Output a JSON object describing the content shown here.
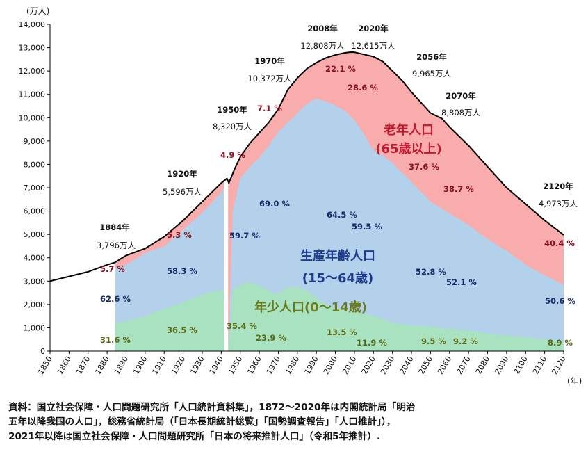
{
  "chart_data": {
    "type": "area",
    "y_unit": "(万人)",
    "x_unit": "(年)",
    "ylim": [
      0,
      14000
    ],
    "xlim": [
      1850,
      2120
    ],
    "y_ticks": [
      "0",
      "1,000",
      "2,000",
      "3,000",
      "4,000",
      "5,000",
      "6,000",
      "7,000",
      "8,000",
      "9,000",
      "10,000",
      "11,000",
      "12,000",
      "13,000",
      "14,000"
    ],
    "x_ticks": [
      "1850",
      "1860",
      "1870",
      "1880",
      "1890",
      "1900",
      "1910",
      "1920",
      "1930",
      "1940",
      "1950",
      "1960",
      "1970",
      "1980",
      "1990",
      "2000",
      "2010",
      "2020",
      "2030",
      "2040",
      "2050",
      "2060",
      "2070",
      "2080",
      "2090",
      "2100",
      "2110",
      "2120"
    ],
    "grid": false,
    "total_population": {
      "x": [
        1850,
        1860,
        1870,
        1880,
        1884,
        1890,
        1900,
        1910,
        1920,
        1930,
        1940,
        1943,
        1944,
        1947,
        1950,
        1955,
        1960,
        1965,
        1970,
        1975,
        1980,
        1985,
        1990,
        1995,
        2000,
        2005,
        2008,
        2010,
        2015,
        2020,
        2025,
        2030,
        2035,
        2040,
        2045,
        2050,
        2056,
        2060,
        2065,
        2070,
        2080,
        2090,
        2100,
        2110,
        2120
      ],
      "y": [
        3000,
        3200,
        3400,
        3700,
        3796,
        4100,
        4400,
        4900,
        5596,
        6400,
        7200,
        7400,
        7200,
        7800,
        8320,
        8900,
        9350,
        9800,
        10372,
        11200,
        11700,
        12100,
        12360,
        12560,
        12690,
        12780,
        12808,
        12806,
        12710,
        12615,
        12400,
        12000,
        11600,
        11100,
        10650,
        10200,
        9965,
        9600,
        9200,
        8808,
        7900,
        7000,
        6300,
        5600,
        4973
      ]
    },
    "working_age": {
      "x": [
        1884,
        1890,
        1900,
        1910,
        1920,
        1930,
        1940,
        1941.5,
        1943,
        1943.6,
        1946,
        1950,
        1955,
        1960,
        1965,
        1970,
        1975,
        1980,
        1985,
        1990,
        1995,
        2000,
        2005,
        2010,
        2015,
        2020,
        2025,
        2030,
        2040,
        2050,
        2060,
        2070,
        2080,
        2090,
        2100,
        2110,
        2120
      ],
      "y": [
        3570,
        3700,
        4200,
        4500,
        5200,
        5930,
        6800,
        7000,
        6800,
        0,
        6000,
        7400,
        7900,
        8300,
        8800,
        9400,
        9800,
        10200,
        10600,
        10820,
        10700,
        10520,
        10300,
        9900,
        9300,
        8600,
        8400,
        8050,
        7250,
        6400,
        5900,
        5400,
        4800,
        4300,
        3700,
        3250,
        2840
      ]
    },
    "young": {
      "x": [
        1884,
        1890,
        1900,
        1910,
        1920,
        1930,
        1935,
        1940,
        1941.5,
        1943,
        1943.6,
        1946,
        1950,
        1953,
        1957,
        1960,
        1965,
        1968,
        1972,
        1975,
        1980,
        1985,
        1990,
        1995,
        2000,
        2005,
        2010,
        2015,
        2020,
        2025,
        2030,
        2040,
        2050,
        2060,
        2070,
        2080,
        2090,
        2100,
        2110,
        2120
      ],
      "y": [
        1200,
        1280,
        1500,
        1800,
        2100,
        2420,
        2560,
        2600,
        2630,
        2600,
        0,
        2620,
        2800,
        2980,
        2900,
        2800,
        2600,
        2420,
        2600,
        2720,
        2750,
        2600,
        2280,
        2000,
        1850,
        1780,
        1700,
        1600,
        1500,
        1370,
        1230,
        1100,
        1050,
        950,
        880,
        760,
        680,
        600,
        520,
        440
      ]
    },
    "shares": {
      "young": [
        {
          "label": "31.6 %",
          "year": 1884
        },
        {
          "label": "36.5 %",
          "year": 1920
        },
        {
          "label": "35.4 %",
          "year": 1950
        },
        {
          "label": "23.9 %",
          "year": 1970
        },
        {
          "label": "13.5 %",
          "year": 2008
        },
        {
          "label": "11.9 %",
          "year": 2020
        },
        {
          "label": "9.5 %",
          "year": 2056
        },
        {
          "label": "9.2 %",
          "year": 2070
        },
        {
          "label": "8.9 %",
          "year": 2120
        }
      ],
      "working": [
        {
          "label": "62.6 %",
          "year": 1884
        },
        {
          "label": "58.3 %",
          "year": 1920
        },
        {
          "label": "59.7 %",
          "year": 1950
        },
        {
          "label": "69.0 %",
          "year": 1970
        },
        {
          "label": "64.5 %",
          "year": 2008
        },
        {
          "label": "59.5 %",
          "year": 2020
        },
        {
          "label": "52.8 %",
          "year": 2056
        },
        {
          "label": "52.1 %",
          "year": 2070
        },
        {
          "label": "50.6 %",
          "year": 2120
        }
      ],
      "elderly": [
        {
          "label": "5.7 %",
          "year": 1884
        },
        {
          "label": "5.3 %",
          "year": 1920
        },
        {
          "label": "4.9 %",
          "year": 1950
        },
        {
          "label": "7.1 %",
          "year": 1970
        },
        {
          "label": "22.1 %",
          "year": 2008
        },
        {
          "label": "28.6 %",
          "year": 2020
        },
        {
          "label": "37.6 %",
          "year": 2056
        },
        {
          "label": "38.7 %",
          "year": 2070
        },
        {
          "label": "40.4 %",
          "year": 2120
        }
      ]
    },
    "annotations": [
      {
        "year": "1884年",
        "value": "3,796万人"
      },
      {
        "year": "1920年",
        "value": "5,596万人"
      },
      {
        "year": "1950年",
        "value": "8,320万人"
      },
      {
        "year": "1970年",
        "value": "10,372万人"
      },
      {
        "year": "2008年",
        "value": "12,808万人"
      },
      {
        "year": "2020年",
        "value": "12,615万人"
      },
      {
        "year": "2056年",
        "value": "9,965万人"
      },
      {
        "year": "2070年",
        "value": "8,808万人"
      },
      {
        "year": "2120年",
        "value": "4,973万人"
      }
    ],
    "series_labels": {
      "elderly_line1": "老年人口",
      "elderly_line2": "(65歳以上)",
      "working_line1": "生産年齢人口",
      "working_line2": "(15～64歳)",
      "young": "年少人口(0～14歳)"
    },
    "colors": {
      "elderly": "#f8acac",
      "working": "#b3d1ea",
      "young": "#a9e2c0",
      "line": "#000000",
      "working_label": "#1f3b8f",
      "young_label": "#6b7a1c",
      "elderly_label": "#c0182e",
      "young_pct": "#5a6a12",
      "working_pct": "#1a2a6a",
      "elderly_pct": "#8a1020"
    }
  },
  "source": {
    "line1": "資料：国立社会保障・人口問題研究所「人口統計資料集」，1872～2020年は内閣統計局「明治",
    "line2": "五年以降我国の人口」，総務省統計局（「日本長期統計総覧」「国勢調査報告」「人口推計」），",
    "line3": "2021年以降は国立社会保障・人口問題研究所「日本の将来推計人口」（令和5年推計）."
  }
}
